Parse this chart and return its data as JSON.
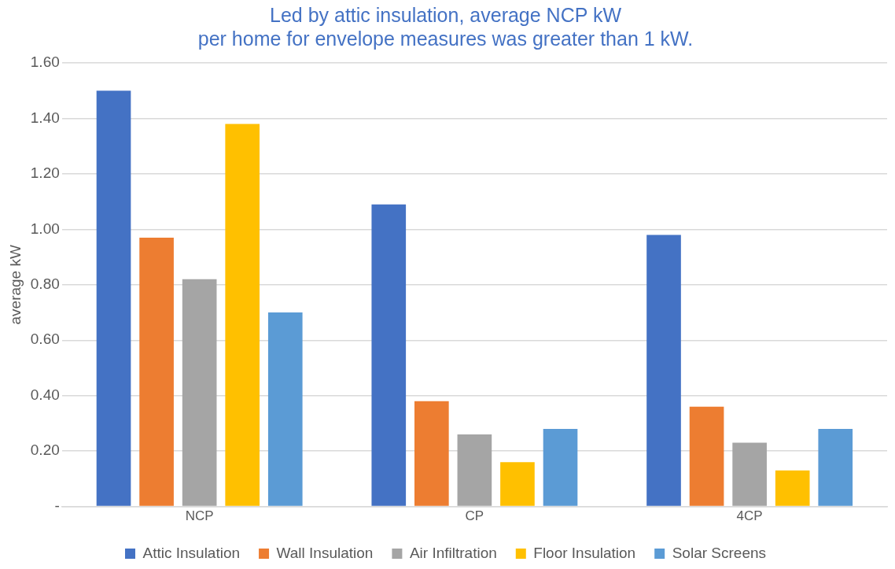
{
  "chart_data": {
    "type": "bar",
    "title": "Led by attic insulation, average NCP kW\nper home for envelope measures was greater than 1 kW.",
    "ylabel": "average kW",
    "categories": [
      "NCP",
      "CP",
      "4CP"
    ],
    "series": [
      {
        "name": "Attic Insulation",
        "color": "#4472c4",
        "values": [
          1.5,
          1.09,
          0.98
        ]
      },
      {
        "name": "Wall Insulation",
        "color": "#ed7d31",
        "values": [
          0.97,
          0.38,
          0.36
        ]
      },
      {
        "name": "Air Infiltration",
        "color": "#a5a5a5",
        "values": [
          0.82,
          0.26,
          0.23
        ]
      },
      {
        "name": "Floor Insulation",
        "color": "#ffc000",
        "values": [
          1.38,
          0.16,
          0.13
        ]
      },
      {
        "name": "Solar Screens",
        "color": "#5b9bd5",
        "values": [
          0.7,
          0.28,
          0.28
        ]
      }
    ],
    "ylim": [
      0,
      1.6
    ],
    "yticks": [
      {
        "value": 0,
        "label": "-"
      },
      {
        "value": 0.2,
        "label": "0.20"
      },
      {
        "value": 0.4,
        "label": "0.40"
      },
      {
        "value": 0.6,
        "label": "0.60"
      },
      {
        "value": 0.8,
        "label": "0.80"
      },
      {
        "value": 1.0,
        "label": "1.00"
      },
      {
        "value": 1.2,
        "label": "1.20"
      },
      {
        "value": 1.4,
        "label": "1.40"
      },
      {
        "value": 1.6,
        "label": "1.60"
      }
    ],
    "grid": "y",
    "legend": "bottom"
  }
}
